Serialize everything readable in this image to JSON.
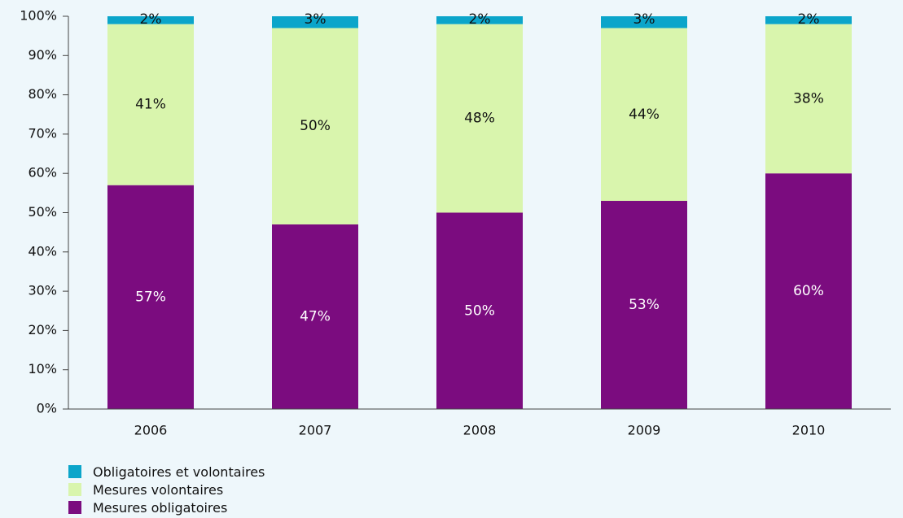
{
  "chart_data": {
    "type": "bar",
    "stacked": true,
    "categories": [
      "2006",
      "2007",
      "2008",
      "2009",
      "2010"
    ],
    "series": [
      {
        "name": "Mesures obligatoires",
        "color": "#7b0c7f",
        "values": [
          57,
          47,
          50,
          53,
          60
        ],
        "labels": [
          "57%",
          "47%",
          "50%",
          "53%",
          "60%"
        ]
      },
      {
        "name": "Mesures volontaires",
        "color": "#d9f5ad",
        "values": [
          41,
          50,
          48,
          44,
          38
        ],
        "labels": [
          "41%",
          "50%",
          "48%",
          "44%",
          "38%"
        ]
      },
      {
        "name": "Obligatoires et volontaires",
        "color": "#0ba5ca",
        "values": [
          2,
          3,
          2,
          3,
          2
        ],
        "labels": [
          "2%",
          "3%",
          "2%",
          "3%",
          "2%"
        ]
      }
    ],
    "ylim": [
      0,
      100
    ],
    "yticks": [
      "0%",
      "10%",
      "20%",
      "30%",
      "40%",
      "50%",
      "60%",
      "70%",
      "80%",
      "90%",
      "100%"
    ],
    "grid": false,
    "legend_position": "bottom-left",
    "legend_order": [
      "Obligatoires et volontaires",
      "Mesures volontaires",
      "Mesures obligatoires"
    ]
  }
}
